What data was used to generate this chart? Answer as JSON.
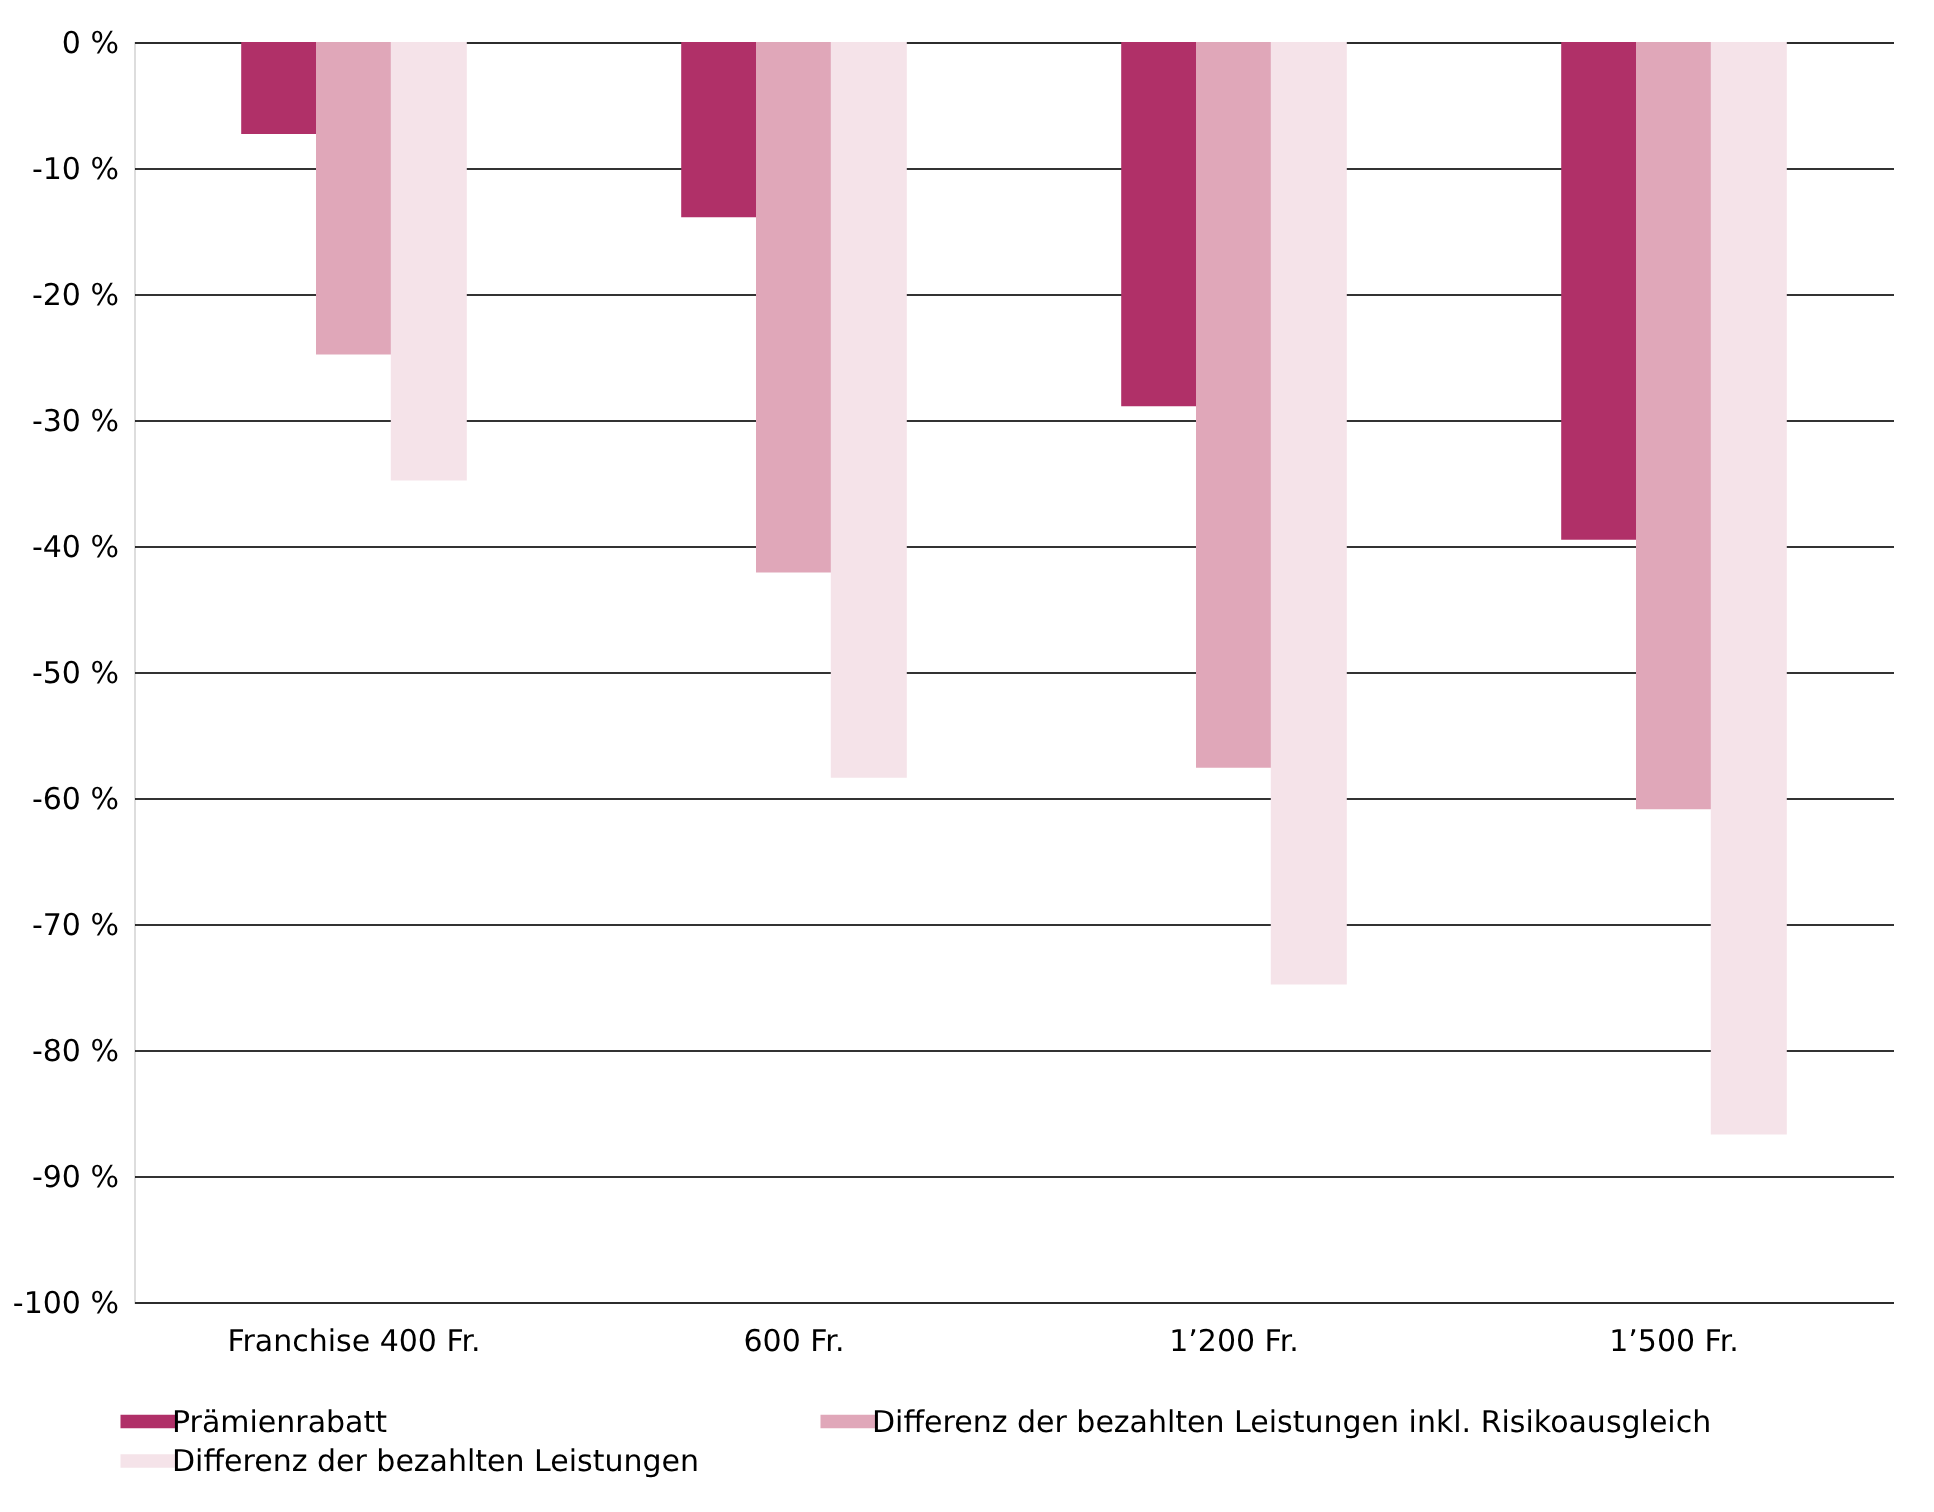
{
  "chart_data": {
    "type": "bar",
    "categories": [
      "Franchise  400 Fr.",
      "600 Fr.",
      "1’200 Fr.",
      "1’500 Fr."
    ],
    "series": [
      {
        "name": "Prämienrabatt",
        "color": "#b03068",
        "values": [
          -7.3,
          -13.9,
          -28.9,
          -39.5
        ]
      },
      {
        "name": "Differenz der bezahlten Leistungen inkl. Risikoausgleich",
        "color": "#e0a7b9",
        "values": [
          -24.8,
          -42.1,
          -57.6,
          -60.9
        ]
      },
      {
        "name": "Differenz der bezahlten Leistungen",
        "color": "#f5e3e9",
        "values": [
          -34.8,
          -58.4,
          -74.8,
          -86.7
        ]
      }
    ],
    "ylim": [
      -100,
      0
    ],
    "yticks": [
      {
        "value": 0,
        "label": "0 %"
      },
      {
        "value": -10,
        "label": "-10 %"
      },
      {
        "value": -20,
        "label": "-20 %"
      },
      {
        "value": -30,
        "label": "-30 %"
      },
      {
        "value": -40,
        "label": "-40 %"
      },
      {
        "value": -50,
        "label": "-50 %"
      },
      {
        "value": -60,
        "label": "-60 %"
      },
      {
        "value": -70,
        "label": "-70 %"
      },
      {
        "value": -80,
        "label": "-80 %"
      },
      {
        "value": -90,
        "label": "-90 %"
      },
      {
        "value": -100,
        "label": "-100 %"
      }
    ],
    "grid": "y",
    "legend": "bottom"
  }
}
